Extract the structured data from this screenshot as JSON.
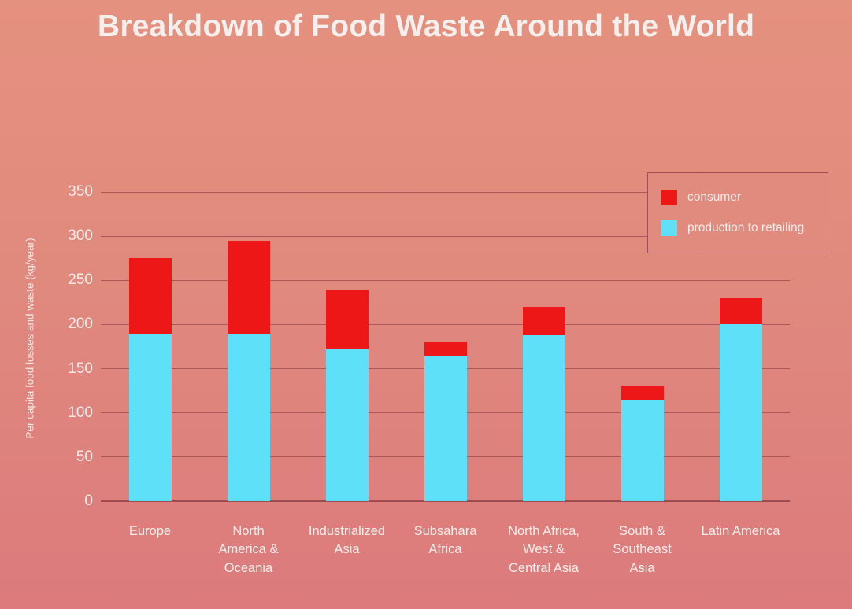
{
  "title": "Breakdown of Food Waste Around the World",
  "colors": {
    "background_top": "#e5917f",
    "background_bottom": "#dc7a7c",
    "consumer": "#ee1717",
    "production": "#5ee0f8",
    "gridline": "#aa585e",
    "baseline": "#9c4b51",
    "text": "#f5efec",
    "legend_border": "#9b4e55",
    "legend_fill": "#e18b7e"
  },
  "legend": {
    "items": [
      {
        "label": "consumer",
        "color": "#ee1717"
      },
      {
        "label": "production to retailing",
        "color": "#5ee0f8"
      }
    ]
  },
  "chart_data": {
    "type": "bar",
    "stacked": true,
    "title": "Breakdown of Food Waste Around the World",
    "xlabel": "",
    "ylabel": "Per capita food losses and waste (kg/year)",
    "ylim": [
      0,
      350
    ],
    "yticks": [
      0,
      50,
      100,
      150,
      200,
      250,
      300,
      350
    ],
    "grid": true,
    "legend_position": "top-right",
    "categories": [
      {
        "name": "Europe",
        "lines": [
          "Europe"
        ]
      },
      {
        "name": "North America & Oceania",
        "lines": [
          "North",
          "America &",
          "Oceania"
        ]
      },
      {
        "name": "Industrialized Asia",
        "lines": [
          "Industrialized",
          "Asia"
        ]
      },
      {
        "name": "Subsahara Africa",
        "lines": [
          "Subsahara",
          "Africa"
        ]
      },
      {
        "name": "North Africa, West & Central Asia",
        "lines": [
          "North Africa,",
          "West &",
          "Central Asia"
        ]
      },
      {
        "name": "South & Southeast Asia",
        "lines": [
          "South &",
          "Southeast",
          "Asia"
        ]
      },
      {
        "name": "Latin America",
        "lines": [
          "Latin America"
        ]
      }
    ],
    "series": [
      {
        "name": "production to retailing",
        "color_key": "production",
        "values": [
          190,
          190,
          172,
          165,
          188,
          115,
          200
        ]
      },
      {
        "name": "consumer",
        "color_key": "consumer",
        "values": [
          85,
          105,
          68,
          15,
          32,
          15,
          30
        ]
      }
    ]
  }
}
